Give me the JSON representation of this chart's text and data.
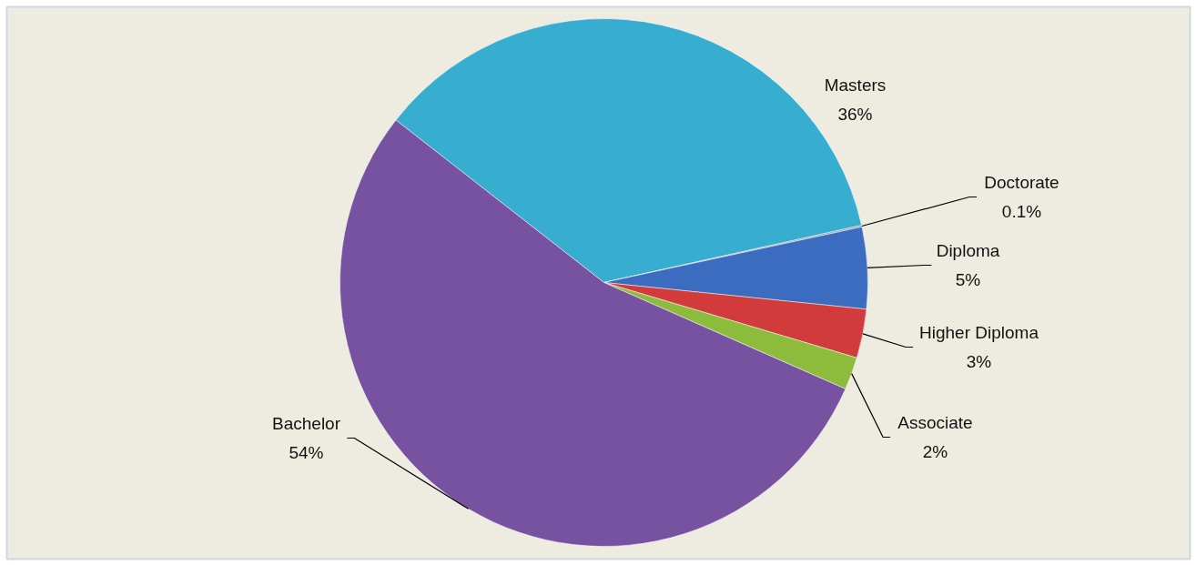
{
  "chart_data": {
    "type": "pie",
    "categories": [
      "Masters",
      "Doctorate",
      "Diploma",
      "Higher Diploma",
      "Associate",
      "Bachelor"
    ],
    "values": [
      36,
      0.1,
      5,
      3,
      2,
      54
    ],
    "colors": [
      "#37aed0",
      "#8c9aa0",
      "#3b6cc0",
      "#d13b3b",
      "#8dbb3c",
      "#7652a0"
    ],
    "value_labels": [
      "36%",
      "0.1%",
      "5%",
      "3%",
      "2%",
      "54%"
    ]
  }
}
